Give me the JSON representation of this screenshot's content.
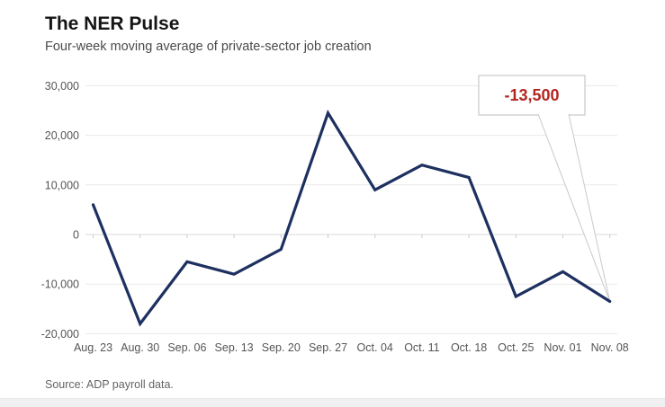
{
  "chart_data": {
    "type": "line",
    "title": "The NER Pulse",
    "subtitle": "Four-week moving average of private-sector job creation",
    "source": "Source: ADP payroll data.",
    "categories": [
      "Aug. 23",
      "Aug. 30",
      "Sep. 06",
      "Sep. 13",
      "Sep. 20",
      "Sep. 27",
      "Oct. 04",
      "Oct. 11",
      "Oct. 18",
      "Oct. 25",
      "Nov. 01",
      "Nov. 08"
    ],
    "values": [
      6000,
      -18000,
      -5500,
      -8000,
      -3000,
      24500,
      9000,
      14000,
      11500,
      -12500,
      -7500,
      -13500
    ],
    "xlabel": "",
    "ylabel": "",
    "ylim": [
      -20000,
      30000
    ],
    "yticks": {
      "values": [
        30000,
        20000,
        10000,
        0,
        -10000,
        -20000
      ],
      "labels": [
        "30,000",
        "20,000",
        "10,000",
        "0",
        "-10,000",
        "-20,000"
      ]
    },
    "grid": true,
    "legend_position": "none",
    "annotation": {
      "label": "-13,500",
      "value": -13500,
      "category": "Nov. 08",
      "target_index": 11
    },
    "colors": {
      "line": "#1d3060",
      "annotation_text": "#b4251f",
      "grid": "#eaeaea",
      "zero_line": "#d8d8d8",
      "axis_text": "#555555",
      "callout_border": "#c9c9c9",
      "callout_fill": "#ffffff"
    }
  }
}
